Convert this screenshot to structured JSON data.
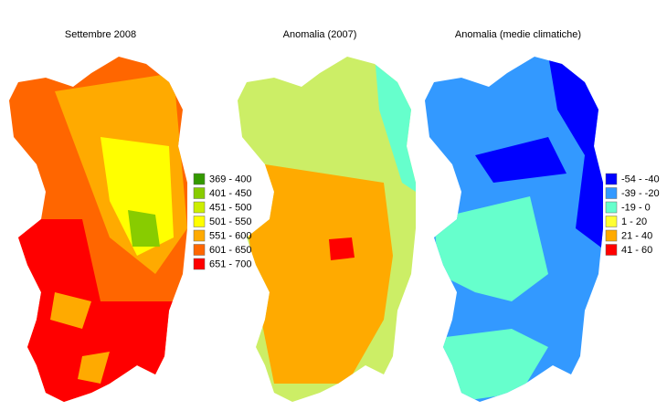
{
  "maps": [
    {
      "title": "Settembre 2008",
      "legend": [
        {
          "label": "369 - 400",
          "color": "#339900"
        },
        {
          "label": "401 - 450",
          "color": "#88cc00"
        },
        {
          "label": "451 - 500",
          "color": "#ccee00"
        },
        {
          "label": "501 - 550",
          "color": "#ffff00"
        },
        {
          "label": "551 - 600",
          "color": "#ffaa00"
        },
        {
          "label": "601 - 650",
          "color": "#ff6600"
        },
        {
          "label": "651 - 700",
          "color": "#ff0000"
        }
      ]
    },
    {
      "title": "Anomalia (2007)"
    },
    {
      "title": "Anomalia (medie climatiche)",
      "legend": [
        {
          "label": "-54 - -40",
          "color": "#0000ff"
        },
        {
          "label": "-39 - -20",
          "color": "#3399ff"
        },
        {
          "label": "-19 - 0",
          "color": "#66ffcc"
        },
        {
          "label": "1 - 20",
          "color": "#ffff33"
        },
        {
          "label": "21 - 40",
          "color": "#ffaa00"
        },
        {
          "label": "41 - 60",
          "color": "#ff0000"
        }
      ]
    }
  ]
}
